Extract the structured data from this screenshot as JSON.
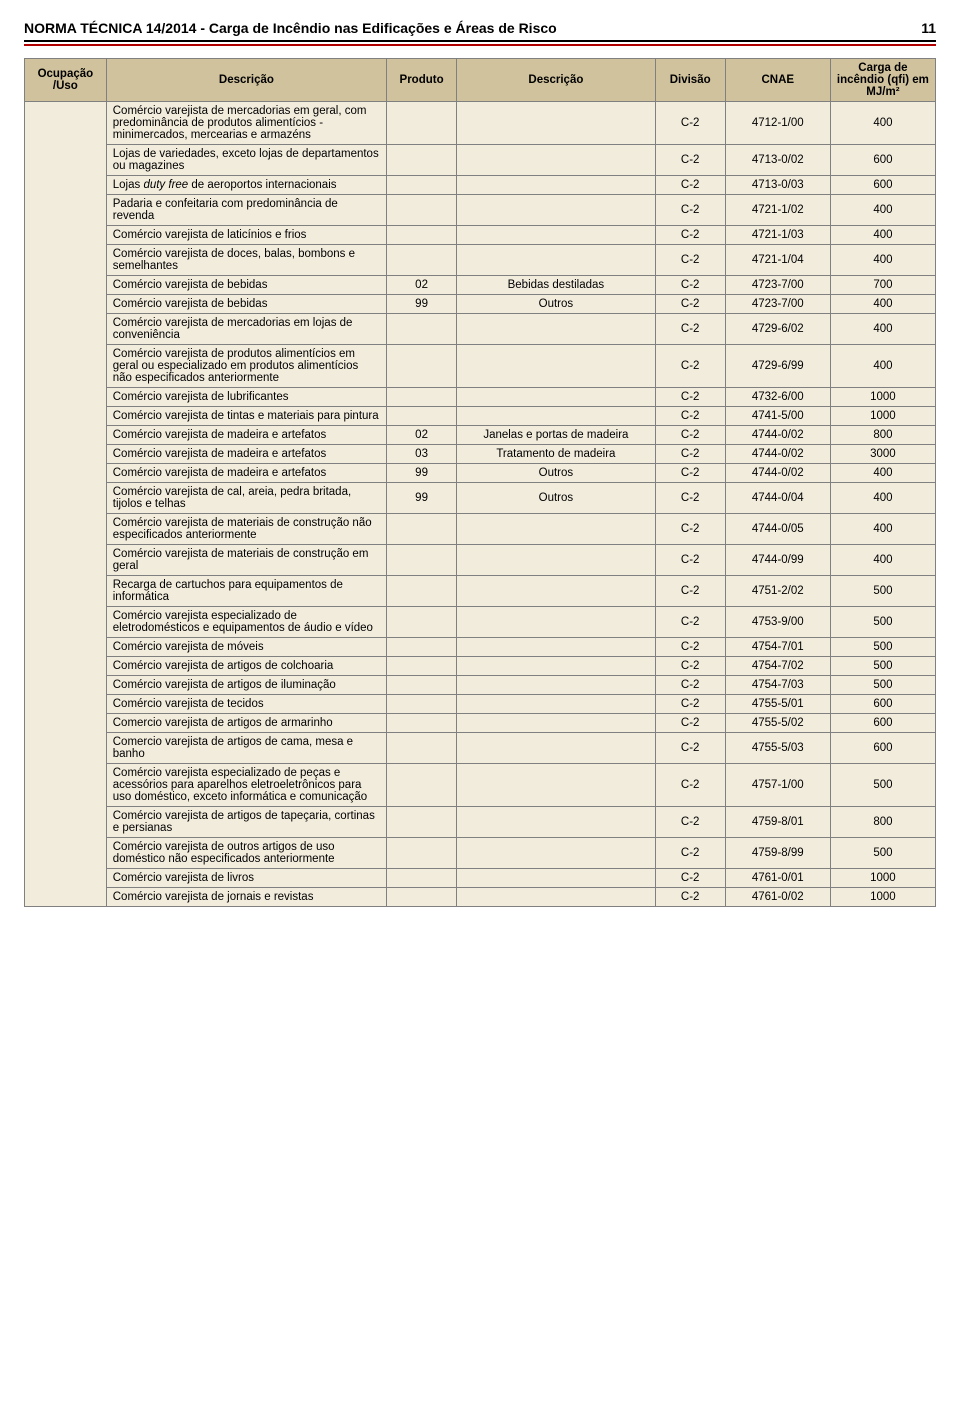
{
  "pageNumber": "11",
  "docTitle": "NORMA TÉCNICA 14/2014 - Carga de Incêndio nas Edificações e Áreas de Risco",
  "headers": {
    "ocupacao": "Ocupação /Uso",
    "descricao1": "Descrição",
    "produto": "Produto",
    "descricao2": "Descrição",
    "divisao": "Divisão",
    "cnae": "CNAE",
    "carga": "Carga de incêndio (qfi) em MJ/m²"
  },
  "rows": [
    {
      "desc": "Comércio varejista de mercadorias em geral, com predominância de produtos alimentícios - minimercados, mercearias e armazéns",
      "prod": "",
      "desc2": "",
      "div": "C-2",
      "cnae": "4712-1/00",
      "carga": "400"
    },
    {
      "desc": "Lojas de variedades, exceto lojas de departamentos ou magazines",
      "prod": "",
      "desc2": "",
      "div": "C-2",
      "cnae": "4713-0/02",
      "carga": "600"
    },
    {
      "desc": "Lojas <i>duty free</i> de aeroportos internacionais",
      "prod": "",
      "desc2": "",
      "div": "C-2",
      "cnae": "4713-0/03",
      "carga": "600",
      "html": true
    },
    {
      "desc": "Padaria e confeitaria com predominância de revenda",
      "prod": "",
      "desc2": "",
      "div": "C-2",
      "cnae": "4721-1/02",
      "carga": "400"
    },
    {
      "desc": "Comércio varejista de laticínios e frios",
      "prod": "",
      "desc2": "",
      "div": "C-2",
      "cnae": "4721-1/03",
      "carga": "400"
    },
    {
      "desc": "Comércio varejista de doces, balas, bombons e semelhantes",
      "prod": "",
      "desc2": "",
      "div": "C-2",
      "cnae": "4721-1/04",
      "carga": "400"
    },
    {
      "desc": "Comércio varejista de bebidas",
      "prod": "02",
      "desc2": "Bebidas destiladas",
      "div": "C-2",
      "cnae": "4723-7/00",
      "carga": "700"
    },
    {
      "desc": "Comércio varejista de bebidas",
      "prod": "99",
      "desc2": "Outros",
      "div": "C-2",
      "cnae": "4723-7/00",
      "carga": "400"
    },
    {
      "desc": "Comércio varejista de mercadorias em lojas de conveniência",
      "prod": "",
      "desc2": "",
      "div": "C-2",
      "cnae": "4729-6/02",
      "carga": "400"
    },
    {
      "desc": "Comércio varejista de produtos alimentícios em geral ou especializado em produtos alimentícios não especificados anteriormente",
      "prod": "",
      "desc2": "",
      "div": "C-2",
      "cnae": "4729-6/99",
      "carga": "400"
    },
    {
      "desc": "Comércio varejista de lubrificantes",
      "prod": "",
      "desc2": "",
      "div": "C-2",
      "cnae": "4732-6/00",
      "carga": "1000"
    },
    {
      "desc": "Comércio varejista de tintas e materiais para pintura",
      "prod": "",
      "desc2": "",
      "div": "C-2",
      "cnae": "4741-5/00",
      "carga": "1000"
    },
    {
      "desc": "Comércio varejista de madeira e artefatos",
      "prod": "02",
      "desc2": "Janelas e portas de madeira",
      "div": "C-2",
      "cnae": "4744-0/02",
      "carga": "800"
    },
    {
      "desc": "Comércio varejista de madeira e artefatos",
      "prod": "03",
      "desc2": "Tratamento de madeira",
      "div": "C-2",
      "cnae": "4744-0/02",
      "carga": "3000"
    },
    {
      "desc": "Comércio varejista de madeira e artefatos",
      "prod": "99",
      "desc2": "Outros",
      "div": "C-2",
      "cnae": "4744-0/02",
      "carga": "400"
    },
    {
      "desc": "Comércio varejista de cal, areia, pedra britada, tijolos e telhas",
      "prod": "99",
      "desc2": "Outros",
      "div": "C-2",
      "cnae": "4744-0/04",
      "carga": "400"
    },
    {
      "desc": "Comércio varejista de materiais de construção não especificados anteriormente",
      "prod": "",
      "desc2": "",
      "div": "C-2",
      "cnae": "4744-0/05",
      "carga": "400"
    },
    {
      "desc": "Comércio varejista de materiais de construção em geral",
      "prod": "",
      "desc2": "",
      "div": "C-2",
      "cnae": "4744-0/99",
      "carga": "400"
    },
    {
      "desc": "Recarga de cartuchos para equipamentos de informática",
      "prod": "",
      "desc2": "",
      "div": "C-2",
      "cnae": "4751-2/02",
      "carga": "500"
    },
    {
      "desc": "Comércio varejista especializado de eletrodomésticos e equipamentos de áudio e vídeo",
      "prod": "",
      "desc2": "",
      "div": "C-2",
      "cnae": "4753-9/00",
      "carga": "500"
    },
    {
      "desc": "Comércio varejista de móveis",
      "prod": "",
      "desc2": "",
      "div": "C-2",
      "cnae": "4754-7/01",
      "carga": "500"
    },
    {
      "desc": "Comércio varejista de artigos de colchoaria",
      "prod": "",
      "desc2": "",
      "div": "C-2",
      "cnae": "4754-7/02",
      "carga": "500"
    },
    {
      "desc": "Comércio varejista de artigos de iluminação",
      "prod": "",
      "desc2": "",
      "div": "C-2",
      "cnae": "4754-7/03",
      "carga": "500"
    },
    {
      "desc": "Comércio varejista de tecidos",
      "prod": "",
      "desc2": "",
      "div": "C-2",
      "cnae": "4755-5/01",
      "carga": "600"
    },
    {
      "desc": "Comercio varejista de artigos de armarinho",
      "prod": "",
      "desc2": "",
      "div": "C-2",
      "cnae": "4755-5/02",
      "carga": "600"
    },
    {
      "desc": "Comercio varejista de artigos de cama, mesa e banho",
      "prod": "",
      "desc2": "",
      "div": "C-2",
      "cnae": "4755-5/03",
      "carga": "600"
    },
    {
      "desc": "Comércio varejista especializado de peças e acessórios para aparelhos eletroeletrônicos para uso doméstico, exceto informática e comunicação",
      "prod": "",
      "desc2": "",
      "div": "C-2",
      "cnae": "4757-1/00",
      "carga": "500"
    },
    {
      "desc": "Comércio varejista de artigos de tapeçaria, cortinas e persianas",
      "prod": "",
      "desc2": "",
      "div": "C-2",
      "cnae": "4759-8/01",
      "carga": "800"
    },
    {
      "desc": "Comércio varejista de outros artigos de uso doméstico não especificados anteriormente",
      "prod": "",
      "desc2": "",
      "div": "C-2",
      "cnae": "4759-8/99",
      "carga": "500"
    },
    {
      "desc": "Comércio varejista de livros",
      "prod": "",
      "desc2": "",
      "div": "C-2",
      "cnae": "4761-0/01",
      "carga": "1000"
    },
    {
      "desc": "Comércio varejista de jornais e revistas",
      "prod": "",
      "desc2": "",
      "div": "C-2",
      "cnae": "4761-0/02",
      "carga": "1000"
    }
  ],
  "style": {
    "bg": "#ffffff",
    "header_bg": "#d0c29c",
    "cell_bg": "#f2ecdd",
    "border": "#808080",
    "accent": "#b00000",
    "body_width": 960,
    "body_height": 1422
  }
}
